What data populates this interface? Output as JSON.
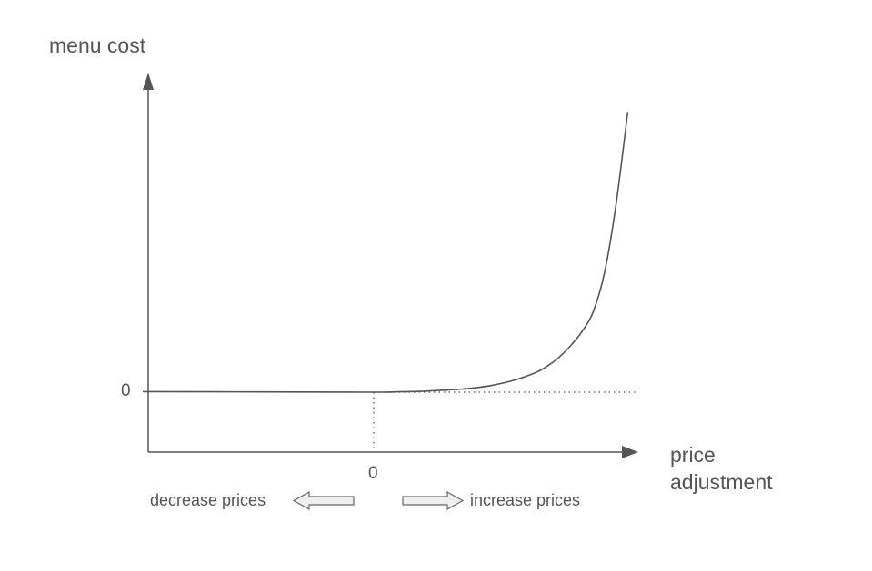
{
  "chart_data": {
    "type": "line",
    "title": "",
    "xlabel": "price\nadjustment",
    "xlabel_lines": [
      "price",
      "adjustment"
    ],
    "ylabel": "menu cost",
    "x_ticks": [
      "0"
    ],
    "y_ticks": [
      "0"
    ],
    "grid": false,
    "series": [
      {
        "x": [
          -1.0,
          -0.5,
          0.0,
          0.1,
          0.2,
          0.3,
          0.4,
          0.5,
          0.6,
          0.7,
          0.75,
          0.8,
          0.85,
          0.9,
          0.95,
          1.0,
          1.05,
          1.1
        ],
        "y": [
          0.01,
          0.005,
          0.0,
          0.006,
          0.015,
          0.035,
          0.06,
          0.11,
          0.2,
          0.34,
          0.45,
          0.6,
          0.8,
          1.05,
          1.4,
          2.1,
          3.3,
          4.9
        ]
      }
    ],
    "reference_lines": [
      {
        "orientation": "horizontal",
        "y": 0.0,
        "style": "dotted",
        "from_x": 0.0
      },
      {
        "orientation": "vertical",
        "x": 0.0,
        "style": "dotted"
      }
    ],
    "annotations": {
      "decrease_label": "decrease prices",
      "increase_label": "increase prices"
    }
  },
  "colors": {
    "axis": "#555555",
    "curve": "#555555",
    "arrow_fill": "#eeeeee",
    "arrow_stroke": "#666666"
  }
}
